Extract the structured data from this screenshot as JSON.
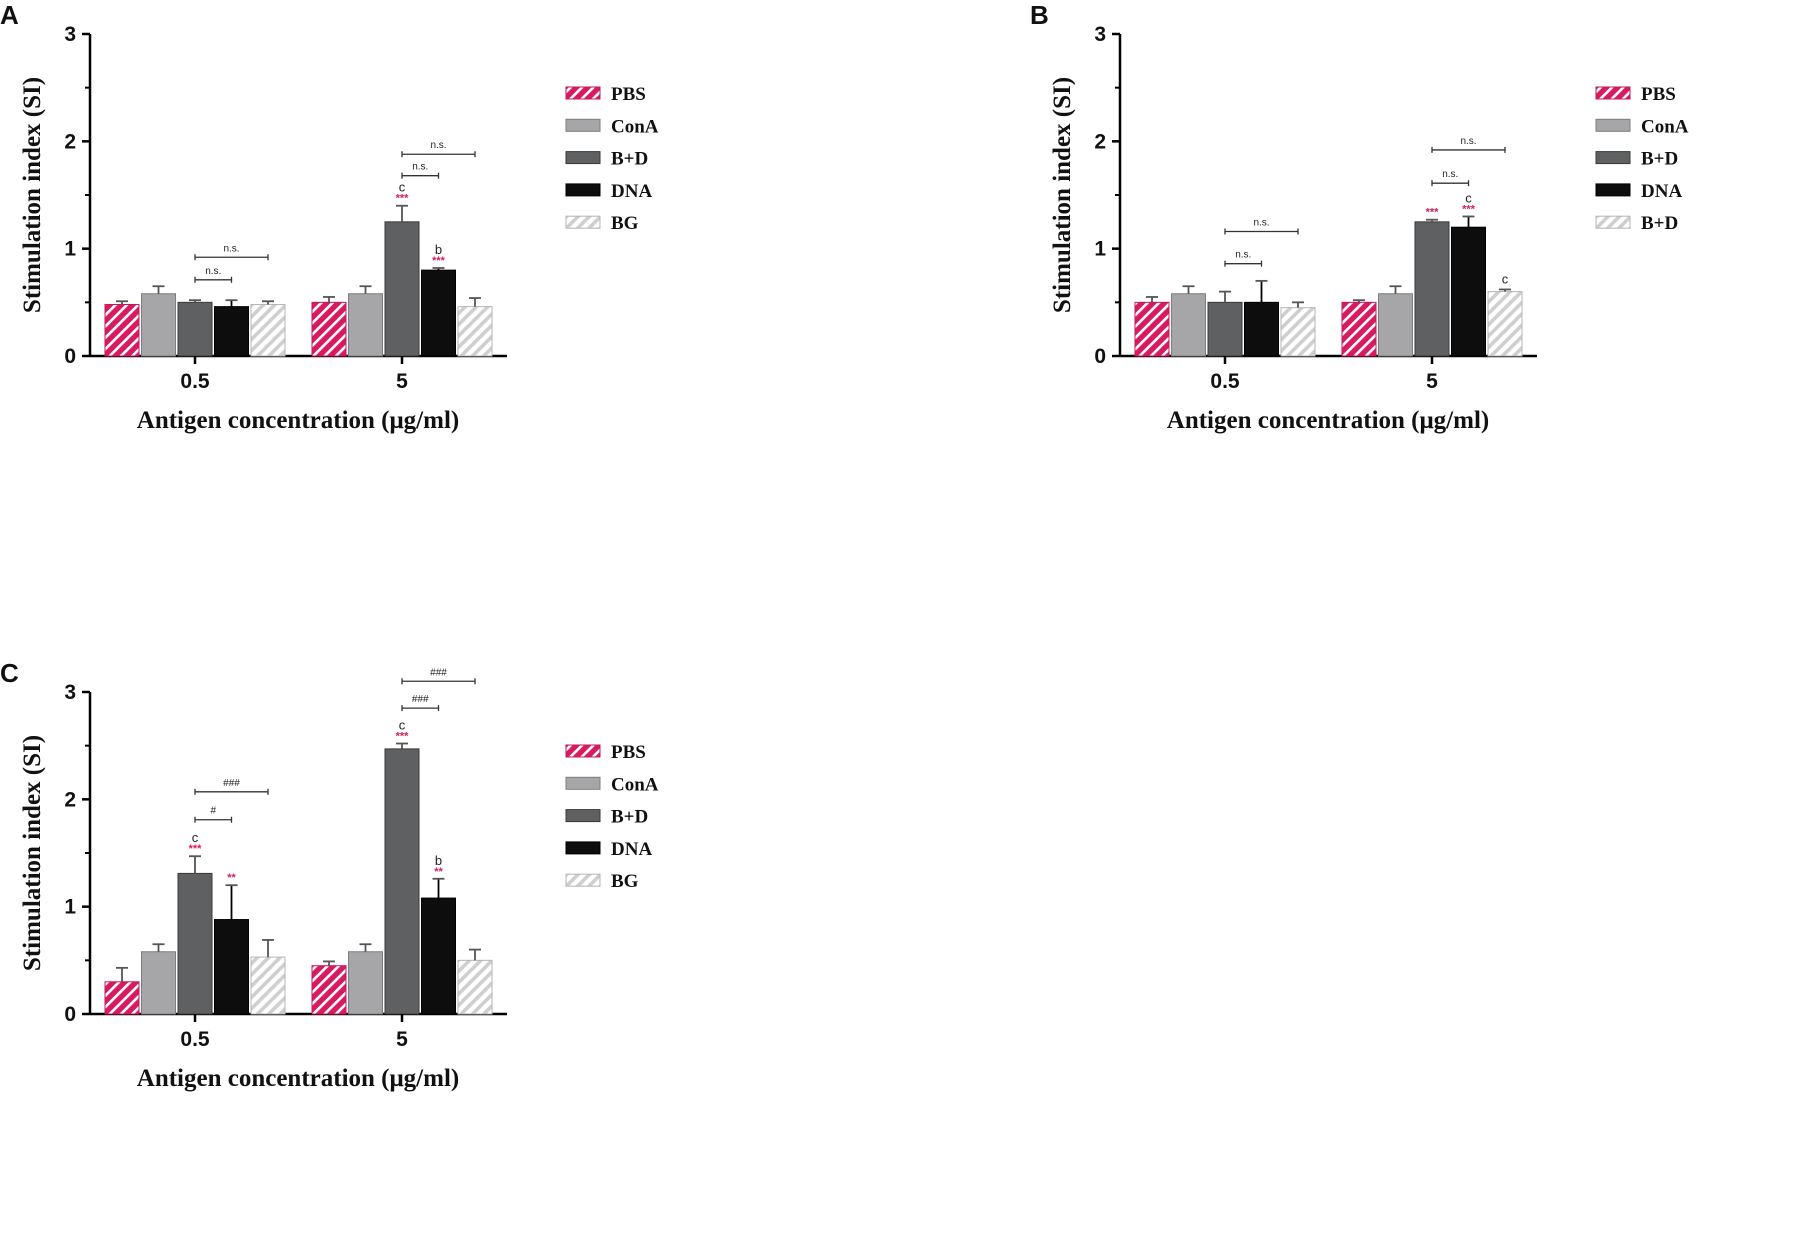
{
  "chart_data": [
    {
      "id": "A",
      "panel_label": "A",
      "type": "bar",
      "categories": [
        "0.5",
        "5"
      ],
      "series": [
        {
          "name": "PBS",
          "style": "pink-hatch",
          "values": [
            0.48,
            0.5
          ],
          "errors": [
            0.03,
            0.05
          ]
        },
        {
          "name": "ConA",
          "style": "light-gray",
          "values": [
            0.58,
            0.58
          ],
          "errors": [
            0.07,
            0.07
          ]
        },
        {
          "name": "B+D",
          "style": "dark-gray",
          "values": [
            0.5,
            1.25
          ],
          "errors": [
            0.02,
            0.15
          ]
        },
        {
          "name": "DNA",
          "style": "black",
          "values": [
            0.46,
            0.8
          ],
          "errors": [
            0.06,
            0.02
          ]
        },
        {
          "name": "BG",
          "style": "gray-hatch",
          "values": [
            0.48,
            0.46
          ],
          "errors": [
            0.03,
            0.08
          ]
        }
      ],
      "xlabel": "Antigen concentration (μg/ml)",
      "ylabel": "Stimulation index (SI)",
      "ylim": [
        0,
        3
      ],
      "yticks": [
        "0",
        "1",
        "2",
        "3"
      ],
      "star_marks": [
        {
          "cat": 1,
          "series": 2,
          "text": "***"
        },
        {
          "cat": 1,
          "series": 3,
          "text": "***"
        }
      ],
      "letter_marks": [
        {
          "cat": 1,
          "series": 2,
          "text": "c"
        },
        {
          "cat": 1,
          "series": 3,
          "text": "b"
        }
      ],
      "brackets": [
        {
          "cat": 0,
          "from": 2,
          "to": 3,
          "y": 0.71,
          "text": "n.s."
        },
        {
          "cat": 0,
          "from": 2,
          "to": 4,
          "y": 0.92,
          "text": "n.s."
        },
        {
          "cat": 1,
          "from": 2,
          "to": 3,
          "y": 1.68,
          "text": "n.s."
        },
        {
          "cat": 1,
          "from": 2,
          "to": 4,
          "y": 1.88,
          "text": "n.s."
        }
      ]
    },
    {
      "id": "B",
      "panel_label": "B",
      "type": "bar",
      "categories": [
        "0.5",
        "5"
      ],
      "series": [
        {
          "name": "PBS",
          "style": "pink-hatch",
          "values": [
            0.5,
            0.5
          ],
          "errors": [
            0.05,
            0.02
          ]
        },
        {
          "name": "ConA",
          "style": "light-gray",
          "values": [
            0.58,
            0.58
          ],
          "errors": [
            0.07,
            0.07
          ]
        },
        {
          "name": "B+D",
          "style": "dark-gray",
          "values": [
            0.5,
            1.25
          ],
          "errors": [
            0.1,
            0.02
          ]
        },
        {
          "name": "DNA",
          "style": "black",
          "values": [
            0.5,
            1.2
          ],
          "errors": [
            0.2,
            0.1
          ]
        },
        {
          "name": "B+D",
          "style": "gray-hatch",
          "values": [
            0.45,
            0.6
          ],
          "errors": [
            0.05,
            0.02
          ]
        }
      ],
      "xlabel": "Antigen concentration (μg/ml)",
      "ylabel": "Stimulation index (SI)",
      "ylim": [
        0,
        3
      ],
      "yticks": [
        "0",
        "1",
        "2",
        "3"
      ],
      "star_marks": [
        {
          "cat": 1,
          "series": 2,
          "text": "***"
        },
        {
          "cat": 1,
          "series": 3,
          "text": "***"
        }
      ],
      "letter_marks": [
        {
          "cat": 1,
          "series": 3,
          "text": "c"
        },
        {
          "cat": 1,
          "series": 4,
          "text": "c"
        }
      ],
      "brackets": [
        {
          "cat": 0,
          "from": 2,
          "to": 3,
          "y": 0.86,
          "text": "n.s."
        },
        {
          "cat": 0,
          "from": 2,
          "to": 4,
          "y": 1.16,
          "text": "n.s."
        },
        {
          "cat": 1,
          "from": 2,
          "to": 3,
          "y": 1.61,
          "text": "n.s."
        },
        {
          "cat": 1,
          "from": 2,
          "to": 4,
          "y": 1.92,
          "text": "n.s."
        }
      ]
    },
    {
      "id": "C",
      "panel_label": "C",
      "type": "bar",
      "categories": [
        "0.5",
        "5"
      ],
      "series": [
        {
          "name": "PBS",
          "style": "pink-hatch",
          "values": [
            0.3,
            0.45
          ],
          "errors": [
            0.13,
            0.04
          ]
        },
        {
          "name": "ConA",
          "style": "light-gray",
          "values": [
            0.58,
            0.58
          ],
          "errors": [
            0.07,
            0.07
          ]
        },
        {
          "name": "B+D",
          "style": "dark-gray",
          "values": [
            1.31,
            2.47
          ],
          "errors": [
            0.16,
            0.05
          ]
        },
        {
          "name": "DNA",
          "style": "black",
          "values": [
            0.88,
            1.08
          ],
          "errors": [
            0.32,
            0.18
          ]
        },
        {
          "name": "BG",
          "style": "gray-hatch",
          "values": [
            0.53,
            0.5
          ],
          "errors": [
            0.16,
            0.1
          ]
        }
      ],
      "xlabel": "Antigen concentration (μg/ml)",
      "ylabel": "Stimulation index (SI)",
      "ylim": [
        0,
        3
      ],
      "yticks": [
        "0",
        "1",
        "2",
        "3"
      ],
      "star_marks": [
        {
          "cat": 0,
          "series": 2,
          "text": "***"
        },
        {
          "cat": 0,
          "series": 3,
          "text": "**"
        },
        {
          "cat": 1,
          "series": 2,
          "text": "***"
        },
        {
          "cat": 1,
          "series": 3,
          "text": "**"
        }
      ],
      "letter_marks": [
        {
          "cat": 0,
          "series": 2,
          "text": "c"
        },
        {
          "cat": 1,
          "series": 2,
          "text": "c"
        },
        {
          "cat": 1,
          "series": 3,
          "text": "b"
        }
      ],
      "brackets": [
        {
          "cat": 0,
          "from": 2,
          "to": 3,
          "y": 1.81,
          "text": "#"
        },
        {
          "cat": 0,
          "from": 2,
          "to": 4,
          "y": 2.07,
          "text": "###"
        },
        {
          "cat": 1,
          "from": 2,
          "to": 3,
          "y": 2.85,
          "text": "###"
        },
        {
          "cat": 1,
          "from": 2,
          "to": 4,
          "y": 3.1,
          "text": "###"
        }
      ]
    }
  ]
}
